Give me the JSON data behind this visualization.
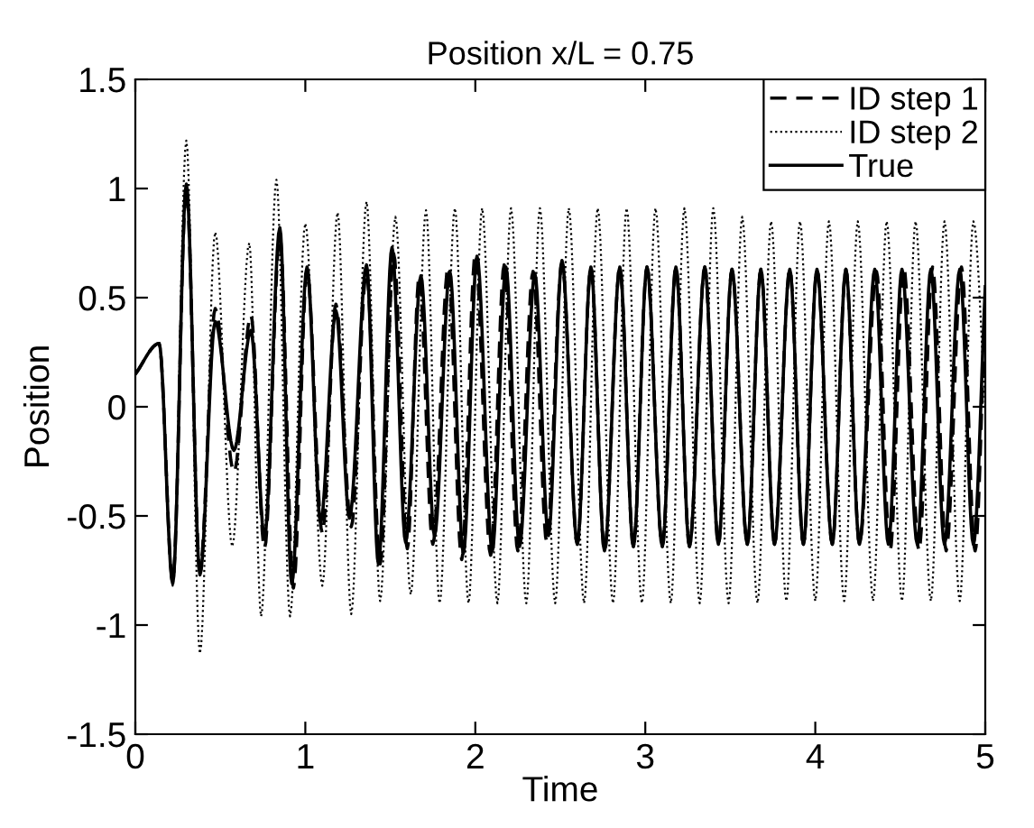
{
  "chart_data": {
    "type": "line",
    "title": "Position x/L = 0.75",
    "xlabel": "Time",
    "ylabel": "Position",
    "xlim": [
      0,
      5
    ],
    "ylim": [
      -1.5,
      1.5
    ],
    "xticks": [
      0,
      1,
      2,
      3,
      4,
      5
    ],
    "yticks": [
      -1.5,
      -1,
      -0.5,
      0,
      0.5,
      1,
      1.5
    ],
    "grid": false,
    "legend": "top right",
    "marker": "none",
    "series": [
      {
        "name": "ID step 1",
        "color": "#000000",
        "line_style": "dashed",
        "x": [
          0,
          0.14,
          0.22,
          0.3,
          0.38,
          0.47,
          0.58,
          0.68,
          0.76,
          0.85,
          0.93,
          1.01,
          1.1,
          1.18,
          1.27,
          1.36,
          1.44,
          1.52,
          1.6,
          1.67,
          1.75,
          1.84,
          1.92,
          2.0,
          2.09,
          2.17,
          2.25,
          2.34,
          2.42,
          2.51,
          2.6,
          2.68,
          2.76,
          2.85,
          2.93,
          3.01,
          3.1,
          3.18,
          3.26,
          3.35,
          3.43,
          3.51,
          3.6,
          3.68,
          3.76,
          3.85,
          3.93,
          4.01,
          4.1,
          4.18,
          4.26,
          4.36,
          4.44,
          4.52,
          4.61,
          4.69,
          4.77,
          4.86,
          4.94,
          5.0
        ],
        "values": [
          0.15,
          0.29,
          -0.8,
          1.0,
          -0.75,
          0.45,
          -0.3,
          0.42,
          -0.65,
          0.78,
          -0.83,
          0.62,
          -0.58,
          0.47,
          -0.55,
          0.62,
          -0.72,
          0.7,
          -0.65,
          0.6,
          -0.63,
          0.64,
          -0.7,
          0.7,
          -0.68,
          0.65,
          -0.66,
          0.62,
          -0.62,
          0.66,
          -0.63,
          0.64,
          -0.66,
          0.64,
          -0.64,
          0.64,
          -0.64,
          0.64,
          -0.64,
          0.64,
          -0.63,
          0.63,
          -0.63,
          0.63,
          -0.63,
          0.63,
          -0.63,
          0.63,
          -0.63,
          0.63,
          -0.63,
          0.62,
          -0.66,
          0.64,
          -0.66,
          0.64,
          -0.66,
          0.64,
          -0.66,
          0.5
        ]
      },
      {
        "name": "ID step 2",
        "color": "#000000",
        "line_style": "dotted",
        "x": [
          0,
          0.14,
          0.22,
          0.3,
          0.38,
          0.47,
          0.57,
          0.67,
          0.74,
          0.83,
          0.91,
          1.0,
          1.1,
          1.19,
          1.27,
          1.36,
          1.44,
          1.53,
          1.62,
          1.71,
          1.79,
          1.88,
          1.96,
          2.04,
          2.13,
          2.21,
          2.3,
          2.38,
          2.47,
          2.55,
          2.64,
          2.72,
          2.81,
          2.89,
          2.98,
          3.06,
          3.15,
          3.23,
          3.32,
          3.4,
          3.49,
          3.57,
          3.66,
          3.74,
          3.83,
          3.91,
          4.0,
          4.08,
          4.17,
          4.25,
          4.34,
          4.42,
          4.51,
          4.59,
          4.68,
          4.76,
          4.85,
          4.93,
          5.0
        ],
        "values": [
          0.15,
          0.29,
          -0.82,
          1.22,
          -1.13,
          0.8,
          -0.64,
          0.75,
          -0.96,
          1.04,
          -0.96,
          0.84,
          -0.82,
          0.89,
          -0.95,
          0.94,
          -0.89,
          0.87,
          -0.86,
          0.9,
          -0.9,
          0.91,
          -0.9,
          0.91,
          -0.9,
          0.91,
          -0.9,
          0.91,
          -0.9,
          0.91,
          -0.9,
          0.91,
          -0.9,
          0.91,
          -0.9,
          0.91,
          -0.9,
          0.91,
          -0.9,
          0.91,
          -0.9,
          0.87,
          -0.9,
          0.85,
          -0.89,
          0.85,
          -0.89,
          0.85,
          -0.89,
          0.85,
          -0.89,
          0.85,
          -0.89,
          0.85,
          -0.89,
          0.85,
          -0.89,
          0.85,
          0.0
        ]
      },
      {
        "name": "True",
        "color": "#000000",
        "line_style": "solid",
        "x": [
          0,
          0.14,
          0.22,
          0.3,
          0.38,
          0.47,
          0.58,
          0.68,
          0.76,
          0.85,
          0.92,
          1.01,
          1.09,
          1.18,
          1.26,
          1.36,
          1.43,
          1.51,
          1.59,
          1.68,
          1.76,
          1.85,
          1.93,
          2.01,
          2.1,
          2.18,
          2.26,
          2.35,
          2.43,
          2.51,
          2.6,
          2.68,
          2.76,
          2.85,
          2.93,
          3.01,
          3.1,
          3.18,
          3.26,
          3.35,
          3.43,
          3.51,
          3.6,
          3.68,
          3.76,
          3.85,
          3.93,
          4.01,
          4.1,
          4.18,
          4.26,
          4.35,
          4.43,
          4.51,
          4.6,
          4.68,
          4.76,
          4.85,
          4.93,
          5.0
        ],
        "values": [
          0.15,
          0.29,
          -0.81,
          1.02,
          -0.77,
          0.39,
          -0.2,
          0.35,
          -0.6,
          0.82,
          -0.81,
          0.64,
          -0.53,
          0.44,
          -0.51,
          0.65,
          -0.72,
          0.73,
          -0.62,
          0.6,
          -0.59,
          0.62,
          -0.67,
          0.69,
          -0.66,
          0.64,
          -0.64,
          0.61,
          -0.59,
          0.67,
          -0.63,
          0.64,
          -0.66,
          0.64,
          -0.64,
          0.64,
          -0.64,
          0.64,
          -0.64,
          0.64,
          -0.63,
          0.63,
          -0.63,
          0.63,
          -0.63,
          0.63,
          -0.63,
          0.63,
          -0.63,
          0.63,
          -0.63,
          0.63,
          -0.63,
          0.63,
          -0.63,
          0.63,
          -0.63,
          0.63,
          -0.63,
          0.55
        ]
      }
    ]
  }
}
